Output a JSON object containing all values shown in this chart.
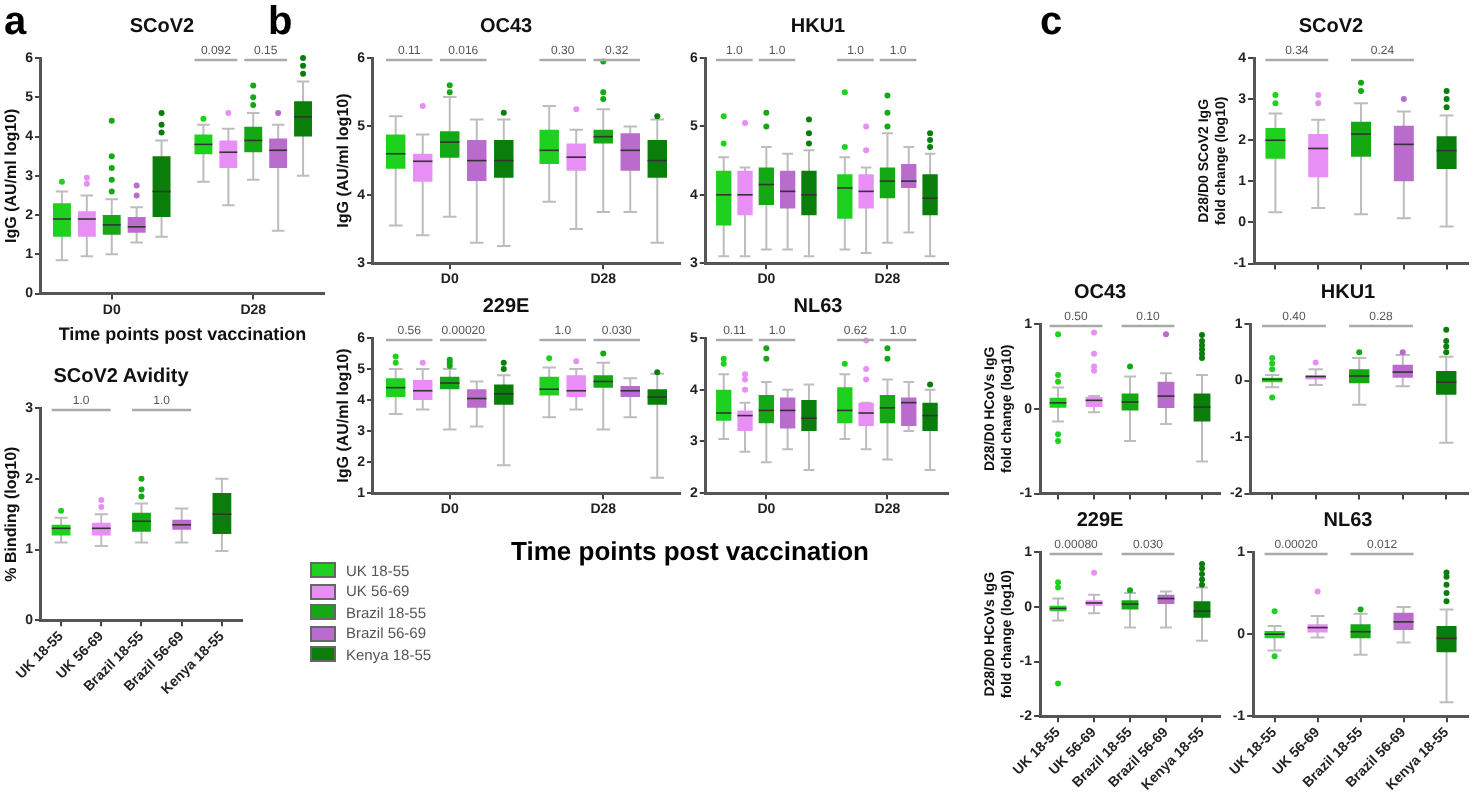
{
  "chart_data": [
    {
      "type": "box",
      "title": "SCoV2",
      "xlabel": "Time points post vaccination",
      "ylabel": "IgG (AU/ml log10)",
      "categories": [
        "D0",
        "D28"
      ],
      "ylim": [
        0,
        6
      ],
      "yticks": [
        0,
        1,
        2,
        3,
        4,
        5,
        6
      ],
      "annotations": [
        "a",
        "0.092",
        "0.15"
      ],
      "series": [
        {
          "color": "#1fd11f",
          "boxes": [
            {
              "low": 0.85,
              "q1": 1.45,
              "median": 1.9,
              "q3": 2.3,
              "high": 2.6,
              "outliers": [
                2.85
              ]
            },
            {
              "low": 2.85,
              "q1": 3.55,
              "median": 3.8,
              "q3": 4.05,
              "high": 4.3,
              "outliers": [
                4.45
              ]
            }
          ]
        },
        {
          "color": "#e88ff5",
          "boxes": [
            {
              "low": 0.95,
              "q1": 1.45,
              "median": 1.9,
              "q3": 2.1,
              "high": 2.5,
              "outliers": [
                2.8,
                2.95
              ]
            },
            {
              "low": 2.25,
              "q1": 3.2,
              "median": 3.6,
              "q3": 3.9,
              "high": 4.2,
              "outliers": [
                4.6
              ]
            }
          ]
        },
        {
          "color": "#14a814",
          "boxes": [
            {
              "low": 1.0,
              "q1": 1.5,
              "median": 1.75,
              "q3": 2.0,
              "high": 2.4,
              "outliers": [
                2.6,
                2.9,
                3.2,
                3.5,
                4.4
              ]
            },
            {
              "low": 2.9,
              "q1": 3.6,
              "median": 3.9,
              "q3": 4.25,
              "high": 4.6,
              "outliers": [
                4.8,
                5.0,
                5.3
              ]
            }
          ]
        },
        {
          "color": "#b96ccc",
          "boxes": [
            {
              "low": 1.3,
              "q1": 1.55,
              "median": 1.7,
              "q3": 1.95,
              "high": 2.2,
              "outliers": [
                2.5,
                2.75
              ]
            },
            {
              "low": 1.6,
              "q1": 3.2,
              "median": 3.65,
              "q3": 3.95,
              "high": 4.3,
              "outliers": [
                4.6
              ]
            }
          ]
        },
        {
          "color": "#0b7d0b",
          "boxes": [
            {
              "low": 1.45,
              "q1": 1.95,
              "median": 2.6,
              "q3": 3.5,
              "high": 3.9,
              "outliers": [
                4.1,
                4.3,
                4.6
              ]
            },
            {
              "low": 3.0,
              "q1": 4.0,
              "median": 4.5,
              "q3": 4.9,
              "high": 5.4,
              "outliers": [
                5.6,
                5.8,
                6.0
              ]
            }
          ]
        }
      ]
    },
    {
      "type": "box",
      "title": "SCoV2 Avidity",
      "ylabel": "% Binding (log10)",
      "categories": [
        "UK 18-55",
        "UK 56-69",
        "Brazil 18-55",
        "Brazil 56-69",
        "Kenya 18-55"
      ],
      "ylim": [
        0,
        3
      ],
      "yticks": [
        0,
        1,
        2,
        3
      ],
      "annotations": [
        "1.0",
        "1.0"
      ],
      "colors": [
        "#1fd11f",
        "#e88ff5",
        "#14a814",
        "#b96ccc",
        "#0b7d0b"
      ],
      "boxes": [
        {
          "low": 1.1,
          "q1": 1.2,
          "median": 1.3,
          "q3": 1.35,
          "high": 1.45,
          "outliers": [
            1.55
          ]
        },
        {
          "low": 1.05,
          "q1": 1.2,
          "median": 1.3,
          "q3": 1.38,
          "high": 1.5,
          "outliers": [
            1.6,
            1.7
          ]
        },
        {
          "low": 1.1,
          "q1": 1.25,
          "median": 1.4,
          "q3": 1.52,
          "high": 1.65,
          "outliers": [
            1.75,
            1.85,
            2.0
          ]
        },
        {
          "low": 1.1,
          "q1": 1.28,
          "median": 1.35,
          "q3": 1.42,
          "high": 1.58
        },
        {
          "low": 0.98,
          "q1": 1.22,
          "median": 1.5,
          "q3": 1.8,
          "high": 2.0
        }
      ]
    },
    {
      "type": "box",
      "title": "OC43",
      "ylabel": "IgG (AU/ml log10)",
      "categories": [
        "D0",
        "D28"
      ],
      "ylim": [
        3,
        6
      ],
      "yticks": [
        3,
        4,
        5,
        6
      ],
      "annotations": [
        "b",
        "0.11",
        "0.016",
        "0.30",
        "0.32"
      ],
      "series": [
        {
          "color": "#1fd11f",
          "boxes": [
            {
              "low": 3.55,
              "q1": 4.38,
              "median": 4.6,
              "q3": 4.88,
              "high": 5.15
            },
            {
              "low": 3.9,
              "q1": 4.45,
              "median": 4.65,
              "q3": 4.95,
              "high": 5.3
            }
          ]
        },
        {
          "color": "#e88ff5",
          "boxes": [
            {
              "low": 3.41,
              "q1": 4.19,
              "median": 4.49,
              "q3": 4.6,
              "high": 4.88,
              "outliers": [
                5.3
              ]
            },
            {
              "low": 3.5,
              "q1": 4.35,
              "median": 4.55,
              "q3": 4.75,
              "high": 4.95,
              "outliers": [
                5.25
              ]
            }
          ]
        },
        {
          "color": "#14a814",
          "boxes": [
            {
              "low": 3.68,
              "q1": 4.54,
              "median": 4.77,
              "q3": 4.93,
              "high": 5.43,
              "outliers": [
                5.5,
                5.6
              ]
            },
            {
              "low": 3.75,
              "q1": 4.75,
              "median": 4.85,
              "q3": 4.95,
              "high": 5.25,
              "outliers": [
                5.4,
                5.5,
                5.95
              ]
            }
          ]
        },
        {
          "color": "#b96ccc",
          "boxes": [
            {
              "low": 3.3,
              "q1": 4.2,
              "median": 4.5,
              "q3": 4.8,
              "high": 5.1
            },
            {
              "low": 3.75,
              "q1": 4.35,
              "median": 4.65,
              "q3": 4.9,
              "high": 5.0
            }
          ]
        },
        {
          "color": "#0b7d0b",
          "boxes": [
            {
              "low": 3.25,
              "q1": 4.25,
              "median": 4.5,
              "q3": 4.8,
              "high": 5.1,
              "outliers": [
                5.2
              ]
            },
            {
              "low": 3.3,
              "q1": 4.25,
              "median": 4.5,
              "q3": 4.8,
              "high": 5.1,
              "outliers": [
                5.15
              ]
            }
          ]
        }
      ]
    },
    {
      "type": "box",
      "title": "HKU1",
      "categories": [
        "D0",
        "D28"
      ],
      "ylim": [
        3,
        6
      ],
      "yticks": [
        3,
        4,
        5,
        6
      ],
      "annotations": [
        "1.0",
        "1.0",
        "1.0",
        "1.0"
      ],
      "series": [
        {
          "color": "#1fd11f",
          "boxes": [
            {
              "low": 3.1,
              "q1": 3.55,
              "median": 4.0,
              "q3": 4.35,
              "high": 4.55,
              "outliers": [
                4.75,
                5.15
              ]
            },
            {
              "low": 3.2,
              "q1": 3.65,
              "median": 4.1,
              "q3": 4.3,
              "high": 4.55,
              "outliers": [
                4.7,
                5.5
              ]
            }
          ]
        },
        {
          "color": "#e88ff5",
          "boxes": [
            {
              "low": 3.1,
              "q1": 3.7,
              "median": 4.0,
              "q3": 4.35,
              "high": 4.4,
              "outliers": [
                5.05
              ]
            },
            {
              "low": 3.15,
              "q1": 3.8,
              "median": 4.05,
              "q3": 4.3,
              "high": 4.4,
              "outliers": [
                4.65,
                5.0
              ]
            }
          ]
        },
        {
          "color": "#14a814",
          "boxes": [
            {
              "low": 3.2,
              "q1": 3.85,
              "median": 4.15,
              "q3": 4.4,
              "high": 4.7,
              "outliers": [
                5.0,
                5.2
              ]
            },
            {
              "low": 3.3,
              "q1": 3.95,
              "median": 4.2,
              "q3": 4.4,
              "high": 4.9,
              "outliers": [
                5.0,
                5.2,
                5.45
              ]
            }
          ]
        },
        {
          "color": "#b96ccc",
          "boxes": [
            {
              "low": 3.2,
              "q1": 3.8,
              "median": 4.05,
              "q3": 4.35,
              "high": 4.6
            },
            {
              "low": 3.45,
              "q1": 4.1,
              "median": 4.2,
              "q3": 4.45,
              "high": 4.7
            }
          ]
        },
        {
          "color": "#0b7d0b",
          "boxes": [
            {
              "low": 3.1,
              "q1": 3.7,
              "median": 4.0,
              "q3": 4.35,
              "high": 4.65,
              "outliers": [
                4.75,
                4.9,
                5.1
              ]
            },
            {
              "low": 3.1,
              "q1": 3.7,
              "median": 3.95,
              "q3": 4.3,
              "high": 4.6,
              "outliers": [
                4.7,
                4.8,
                4.9
              ]
            }
          ]
        }
      ]
    },
    {
      "type": "box",
      "title": "229E",
      "xlabel": "Time points post vaccination",
      "ylabel": "IgG (AU/ml log10)",
      "categories": [
        "D0",
        "D28"
      ],
      "ylim": [
        1,
        6
      ],
      "yticks": [
        1,
        2,
        3,
        4,
        5,
        6
      ],
      "legend": "bottom",
      "annotations": [
        "0.56",
        "0.00020",
        "1.0",
        "0.030"
      ],
      "series": [
        {
          "name": "UK 18-55",
          "color": "#1fd11f",
          "boxes": [
            {
              "low": 3.55,
              "q1": 4.1,
              "median": 4.4,
              "q3": 4.7,
              "high": 5.0,
              "outliers": [
                5.2,
                5.4
              ]
            },
            {
              "low": 3.45,
              "q1": 4.15,
              "median": 4.35,
              "q3": 4.75,
              "high": 5.05,
              "outliers": [
                5.35
              ]
            }
          ]
        },
        {
          "name": "UK 56-69",
          "color": "#e88ff5",
          "boxes": [
            {
              "low": 3.7,
              "q1": 4.0,
              "median": 4.3,
              "q3": 4.65,
              "high": 5.0,
              "outliers": [
                5.2
              ]
            },
            {
              "low": 3.7,
              "q1": 4.1,
              "median": 4.3,
              "q3": 4.8,
              "high": 5.0,
              "outliers": [
                5.25
              ]
            }
          ]
        },
        {
          "name": "Brazil 18-55",
          "color": "#14a814",
          "boxes": [
            {
              "low": 3.05,
              "q1": 4.35,
              "median": 4.55,
              "q3": 4.75,
              "high": 5.0,
              "outliers": [
                5.1,
                5.2,
                5.3
              ]
            },
            {
              "low": 3.05,
              "q1": 4.4,
              "median": 4.6,
              "q3": 4.8,
              "high": 5.2,
              "outliers": [
                5.5
              ]
            }
          ]
        },
        {
          "name": "Brazil 56-69",
          "color": "#b96ccc",
          "boxes": [
            {
              "low": 3.15,
              "q1": 3.75,
              "median": 4.05,
              "q3": 4.35,
              "high": 4.6
            },
            {
              "low": 3.45,
              "q1": 4.1,
              "median": 4.3,
              "q3": 4.45,
              "high": 4.7
            }
          ]
        },
        {
          "name": "Kenya 18-55",
          "color": "#0b7d0b",
          "boxes": [
            {
              "low": 1.9,
              "q1": 3.85,
              "median": 4.2,
              "q3": 4.5,
              "high": 4.8,
              "outliers": [
                5.0,
                5.2
              ]
            },
            {
              "low": 1.5,
              "q1": 3.85,
              "median": 4.1,
              "q3": 4.35,
              "high": 4.85,
              "outliers": [
                4.9
              ]
            }
          ]
        }
      ]
    },
    {
      "type": "box",
      "title": "NL63",
      "categories": [
        "D0",
        "D28"
      ],
      "ylim": [
        2,
        5
      ],
      "yticks": [
        2,
        3,
        4,
        5
      ],
      "annotations": [
        "0.11",
        "1.0",
        "0.62",
        "1.0"
      ],
      "series": [
        {
          "color": "#1fd11f",
          "boxes": [
            {
              "low": 3.05,
              "q1": 3.4,
              "median": 3.55,
              "q3": 4.0,
              "high": 4.3,
              "outliers": [
                4.5,
                4.6
              ]
            },
            {
              "low": 3.05,
              "q1": 3.35,
              "median": 3.6,
              "q3": 4.05,
              "high": 4.3,
              "outliers": [
                4.5
              ]
            }
          ]
        },
        {
          "color": "#e88ff5",
          "boxes": [
            {
              "low": 2.8,
              "q1": 3.2,
              "median": 3.5,
              "q3": 3.6,
              "high": 3.75,
              "outliers": [
                4.0,
                4.2,
                4.3
              ]
            },
            {
              "low": 2.85,
              "q1": 3.3,
              "median": 3.55,
              "q3": 3.75,
              "high": 3.75,
              "outliers": [
                4.2,
                4.4,
                4.95
              ]
            }
          ]
        },
        {
          "color": "#14a814",
          "boxes": [
            {
              "low": 2.6,
              "q1": 3.35,
              "median": 3.6,
              "q3": 3.9,
              "high": 4.15,
              "outliers": [
                4.6,
                4.8
              ]
            },
            {
              "low": 2.65,
              "q1": 3.35,
              "median": 3.65,
              "q3": 3.9,
              "high": 4.2,
              "outliers": [
                4.6,
                4.8
              ]
            }
          ]
        },
        {
          "color": "#b96ccc",
          "boxes": [
            {
              "low": 2.85,
              "q1": 3.25,
              "median": 3.6,
              "q3": 3.85,
              "high": 4.0
            },
            {
              "low": 3.2,
              "q1": 3.3,
              "median": 3.75,
              "q3": 3.85,
              "high": 4.15
            }
          ]
        },
        {
          "color": "#0b7d0b",
          "boxes": [
            {
              "low": 2.45,
              "q1": 3.2,
              "median": 3.45,
              "q3": 3.8,
              "high": 4.1
            },
            {
              "low": 2.45,
              "q1": 3.2,
              "median": 3.5,
              "q3": 3.75,
              "high": 4.0,
              "outliers": [
                4.1
              ]
            }
          ]
        }
      ]
    },
    {
      "type": "box",
      "title": "SCoV2",
      "ylabel": "D28/D0 SCoV2 IgG fold change (log10)",
      "categories": [
        null,
        null,
        null,
        null,
        null
      ],
      "tick_labels": "y",
      "ylim": [
        -1,
        4
      ],
      "yticks": [
        -1,
        0,
        1,
        2,
        3,
        4
      ],
      "annotations": [
        "c",
        "0.34",
        "0.24"
      ],
      "colors": [
        "#1fd11f",
        "#e88ff5",
        "#14a814",
        "#b96ccc",
        "#0b7d0b"
      ],
      "boxes": [
        {
          "low": 0.25,
          "q1": 1.55,
          "median": 2.0,
          "q3": 2.3,
          "high": 2.65,
          "outliers": [
            2.9,
            3.1
          ]
        },
        {
          "low": 0.35,
          "q1": 1.1,
          "median": 1.8,
          "q3": 2.15,
          "high": 2.5,
          "outliers": [
            2.9,
            3.1
          ]
        },
        {
          "low": 0.2,
          "q1": 1.6,
          "median": 2.15,
          "q3": 2.45,
          "high": 2.9,
          "outliers": [
            3.2,
            3.4
          ]
        },
        {
          "low": 0.1,
          "q1": 1.0,
          "median": 1.9,
          "q3": 2.35,
          "high": 2.7,
          "outliers": [
            3.0
          ]
        },
        {
          "low": -0.1,
          "q1": 1.3,
          "median": 1.75,
          "q3": 2.1,
          "high": 2.6,
          "outliers": [
            2.8,
            3.0,
            3.2
          ]
        }
      ]
    },
    {
      "type": "box",
      "title": "OC43",
      "ylabel": "D28/D0 HCoVs IgG fold change (log10)",
      "categories": [
        null,
        null,
        null,
        null,
        null
      ],
      "tick_labels": "y",
      "ylim": [
        -1,
        1
      ],
      "yticks": [
        -1,
        0,
        1
      ],
      "annotations": [
        "0.50",
        "0.10"
      ],
      "colors": [
        "#1fd11f",
        "#e88ff5",
        "#14a814",
        "#b96ccc",
        "#0b7d0b"
      ],
      "boxes": [
        {
          "low": -0.15,
          "q1": 0.0,
          "median": 0.07,
          "q3": 0.13,
          "high": 0.25,
          "outliers": [
            0.32,
            0.4,
            0.88,
            -0.3,
            -0.38
          ]
        },
        {
          "low": -0.04,
          "q1": 0.02,
          "median": 0.1,
          "q3": 0.14,
          "high": 0.15,
          "outliers": [
            0.45,
            0.5,
            0.65,
            0.9
          ]
        },
        {
          "low": -0.38,
          "q1": -0.02,
          "median": 0.08,
          "q3": 0.18,
          "high": 0.38,
          "outliers": [
            0.5
          ]
        },
        {
          "low": -0.18,
          "q1": 0.01,
          "median": 0.15,
          "q3": 0.32,
          "high": 0.42,
          "outliers": [
            0.88
          ]
        },
        {
          "low": -0.62,
          "q1": -0.15,
          "median": 0.02,
          "q3": 0.18,
          "high": 0.4,
          "outliers": [
            0.6,
            0.65,
            0.7,
            0.75,
            0.8,
            0.87
          ]
        }
      ]
    },
    {
      "type": "box",
      "title": "HKU1",
      "categories": [
        null,
        null,
        null,
        null,
        null
      ],
      "tick_labels": "y",
      "ylim": [
        -2,
        1
      ],
      "yticks": [
        -2,
        -1,
        0,
        1
      ],
      "annotations": [
        "0.40",
        "0.28"
      ],
      "colors": [
        "#1fd11f",
        "#e88ff5",
        "#14a814",
        "#b96ccc",
        "#0b7d0b"
      ],
      "boxes": [
        {
          "low": -0.12,
          "q1": -0.03,
          "median": 0.02,
          "q3": 0.05,
          "high": 0.1,
          "outliers": [
            0.2,
            0.3,
            0.4,
            -0.3
          ]
        },
        {
          "low": -0.08,
          "q1": 0.02,
          "median": 0.07,
          "q3": 0.1,
          "high": 0.2,
          "outliers": [
            0.32
          ]
        },
        {
          "low": -0.43,
          "q1": -0.05,
          "median": 0.08,
          "q3": 0.2,
          "high": 0.4,
          "outliers": [
            0.5
          ]
        },
        {
          "low": -0.1,
          "q1": 0.05,
          "median": 0.15,
          "q3": 0.28,
          "high": 0.45,
          "outliers": [
            0.5
          ]
        },
        {
          "low": -1.1,
          "q1": -0.25,
          "median": -0.03,
          "q3": 0.17,
          "high": 0.42,
          "outliers": [
            0.5,
            0.6,
            0.7,
            0.9
          ]
        }
      ]
    },
    {
      "type": "box",
      "title": "229E",
      "ylabel": "D28/D0 HCoVs IgG fold change (log10)",
      "categories": [
        "UK 18-55",
        "UK 56-69",
        "Brazil 18-55",
        "Brazil 56-69",
        "Kenya 18-55"
      ],
      "ylim": [
        -2,
        1
      ],
      "yticks": [
        -2,
        -1,
        0,
        1
      ],
      "annotations": [
        "0.00080",
        "0.030"
      ],
      "colors": [
        "#1fd11f",
        "#e88ff5",
        "#14a814",
        "#b96ccc",
        "#0b7d0b"
      ],
      "boxes": [
        {
          "low": -0.25,
          "q1": -0.08,
          "median": -0.03,
          "q3": 0.02,
          "high": 0.15,
          "outliers": [
            0.35,
            0.45,
            -1.4
          ]
        },
        {
          "low": -0.12,
          "q1": 0.02,
          "median": 0.07,
          "q3": 0.12,
          "high": 0.22,
          "outliers": [
            0.62
          ]
        },
        {
          "low": -0.38,
          "q1": -0.05,
          "median": 0.05,
          "q3": 0.12,
          "high": 0.25,
          "outliers": [
            0.3
          ]
        },
        {
          "low": -0.38,
          "q1": 0.05,
          "median": 0.15,
          "q3": 0.22,
          "high": 0.28
        },
        {
          "low": -0.62,
          "q1": -0.2,
          "median": -0.08,
          "q3": 0.1,
          "high": 0.35,
          "outliers": [
            0.4,
            0.5,
            0.6,
            0.7,
            0.78
          ]
        }
      ]
    },
    {
      "type": "box",
      "title": "NL63",
      "categories": [
        "UK 18-55",
        "UK 56-69",
        "Brazil 18-55",
        "Brazil 56-69",
        "Kenya 18-55"
      ],
      "ylim": [
        -1,
        1
      ],
      "yticks": [
        -1,
        0,
        1
      ],
      "annotations": [
        "0.00020",
        "0.012"
      ],
      "colors": [
        "#1fd11f",
        "#e88ff5",
        "#14a814",
        "#b96ccc",
        "#0b7d0b"
      ],
      "boxes": [
        {
          "low": -0.2,
          "q1": -0.05,
          "median": 0.0,
          "q3": 0.04,
          "high": 0.1,
          "outliers": [
            0.28,
            -0.27
          ]
        },
        {
          "low": -0.04,
          "q1": 0.02,
          "median": 0.08,
          "q3": 0.12,
          "high": 0.22,
          "outliers": [
            0.52
          ]
        },
        {
          "low": -0.25,
          "q1": -0.05,
          "median": 0.03,
          "q3": 0.12,
          "high": 0.25,
          "outliers": [
            0.3
          ]
        },
        {
          "low": -0.1,
          "q1": 0.05,
          "median": 0.15,
          "q3": 0.26,
          "high": 0.33
        },
        {
          "low": -0.83,
          "q1": -0.22,
          "median": -0.05,
          "q3": 0.1,
          "high": 0.3,
          "outliers": [
            0.4,
            0.5,
            0.6,
            0.7,
            0.75
          ]
        }
      ]
    }
  ]
}
